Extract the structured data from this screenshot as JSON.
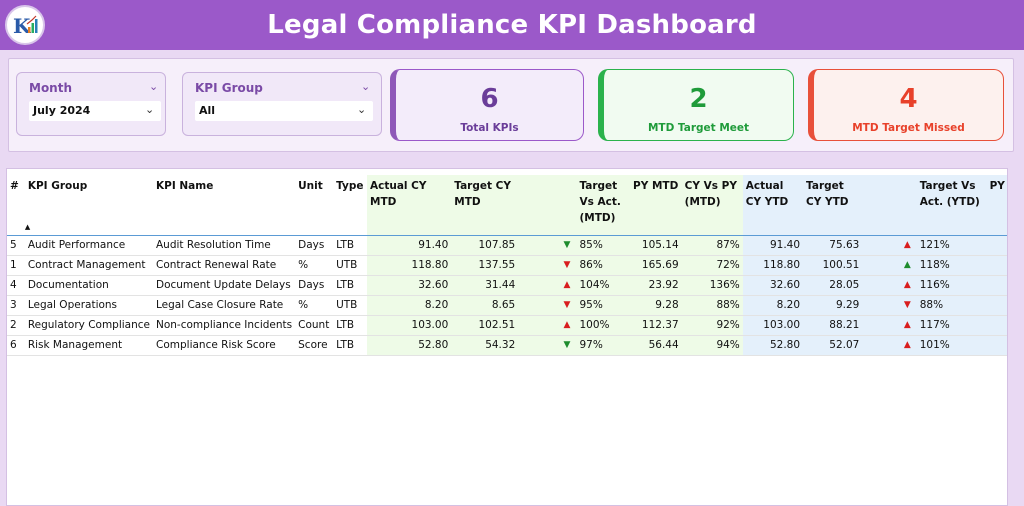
{
  "header": {
    "title": "Legal Compliance KPI Dashboard"
  },
  "filters": {
    "month": {
      "label": "Month",
      "value": "July 2024"
    },
    "kpi_group": {
      "label": "KPI Group",
      "value": "All"
    }
  },
  "cards": [
    {
      "value": "6",
      "caption": "Total KPIs"
    },
    {
      "value": "2",
      "caption": "MTD Target Meet"
    },
    {
      "value": "4",
      "caption": "MTD Target Missed"
    }
  ],
  "table": {
    "headers": [
      "#",
      "KPI Group",
      "KPI Name",
      "Unit",
      "Type",
      "Actual CY MTD",
      "Target CY MTD",
      "Target Vs Act. (MTD)",
      "PY MTD",
      "CY Vs PY (MTD)",
      "Actual CY YTD",
      "Target CY YTD",
      "Target Vs Act. (YTD)",
      "PY"
    ],
    "sort_indicator": "▲",
    "rows": [
      {
        "no": "5",
        "group": "Audit Performance",
        "name": "Audit Resolution Time",
        "unit": "Days",
        "type": "LTB",
        "act_mtd": "91.40",
        "tgt_mtd": "107.85",
        "mtd_arrow": "▼",
        "mtd_arrow_color": "#1e8c2e",
        "tva_mtd": "85%",
        "py_mtd": "105.14",
        "cyvpy_mtd": "87%",
        "act_ytd": "91.40",
        "tgt_ytd": "75.63",
        "ytd_arrow": "▲",
        "ytd_arrow_color": "#d81e1e",
        "tva_ytd": "121%"
      },
      {
        "no": "1",
        "group": "Contract Management",
        "name": "Contract Renewal Rate",
        "unit": "%",
        "type": "UTB",
        "act_mtd": "118.80",
        "tgt_mtd": "137.55",
        "mtd_arrow": "▼",
        "mtd_arrow_color": "#d81e1e",
        "tva_mtd": "86%",
        "py_mtd": "165.69",
        "cyvpy_mtd": "72%",
        "act_ytd": "118.80",
        "tgt_ytd": "100.51",
        "ytd_arrow": "▲",
        "ytd_arrow_color": "#1e8c2e",
        "tva_ytd": "118%"
      },
      {
        "no": "4",
        "group": "Documentation",
        "name": "Document Update Delays",
        "unit": "Days",
        "type": "LTB",
        "act_mtd": "32.60",
        "tgt_mtd": "31.44",
        "mtd_arrow": "▲",
        "mtd_arrow_color": "#d81e1e",
        "tva_mtd": "104%",
        "py_mtd": "23.92",
        "cyvpy_mtd": "136%",
        "act_ytd": "32.60",
        "tgt_ytd": "28.05",
        "ytd_arrow": "▲",
        "ytd_arrow_color": "#d81e1e",
        "tva_ytd": "116%"
      },
      {
        "no": "3",
        "group": "Legal Operations",
        "name": "Legal Case Closure Rate",
        "unit": "%",
        "type": "UTB",
        "act_mtd": "8.20",
        "tgt_mtd": "8.65",
        "mtd_arrow": "▼",
        "mtd_arrow_color": "#d81e1e",
        "tva_mtd": "95%",
        "py_mtd": "9.28",
        "cyvpy_mtd": "88%",
        "act_ytd": "8.20",
        "tgt_ytd": "9.29",
        "ytd_arrow": "▼",
        "ytd_arrow_color": "#d81e1e",
        "tva_ytd": "88%"
      },
      {
        "no": "2",
        "group": "Regulatory Compliance",
        "name": "Non-compliance Incidents",
        "unit": "Count",
        "type": "LTB",
        "act_mtd": "103.00",
        "tgt_mtd": "102.51",
        "mtd_arrow": "▲",
        "mtd_arrow_color": "#d81e1e",
        "tva_mtd": "100%",
        "py_mtd": "112.37",
        "cyvpy_mtd": "92%",
        "act_ytd": "103.00",
        "tgt_ytd": "88.21",
        "ytd_arrow": "▲",
        "ytd_arrow_color": "#d81e1e",
        "tva_ytd": "117%"
      },
      {
        "no": "6",
        "group": "Risk Management",
        "name": "Compliance Risk Score",
        "unit": "Score",
        "type": "LTB",
        "act_mtd": "52.80",
        "tgt_mtd": "54.32",
        "mtd_arrow": "▼",
        "mtd_arrow_color": "#1e8c2e",
        "tva_mtd": "97%",
        "py_mtd": "56.44",
        "cyvpy_mtd": "94%",
        "act_ytd": "52.80",
        "tgt_ytd": "52.07",
        "ytd_arrow": "▲",
        "ytd_arrow_color": "#d81e1e",
        "tva_ytd": "101%"
      }
    ]
  }
}
